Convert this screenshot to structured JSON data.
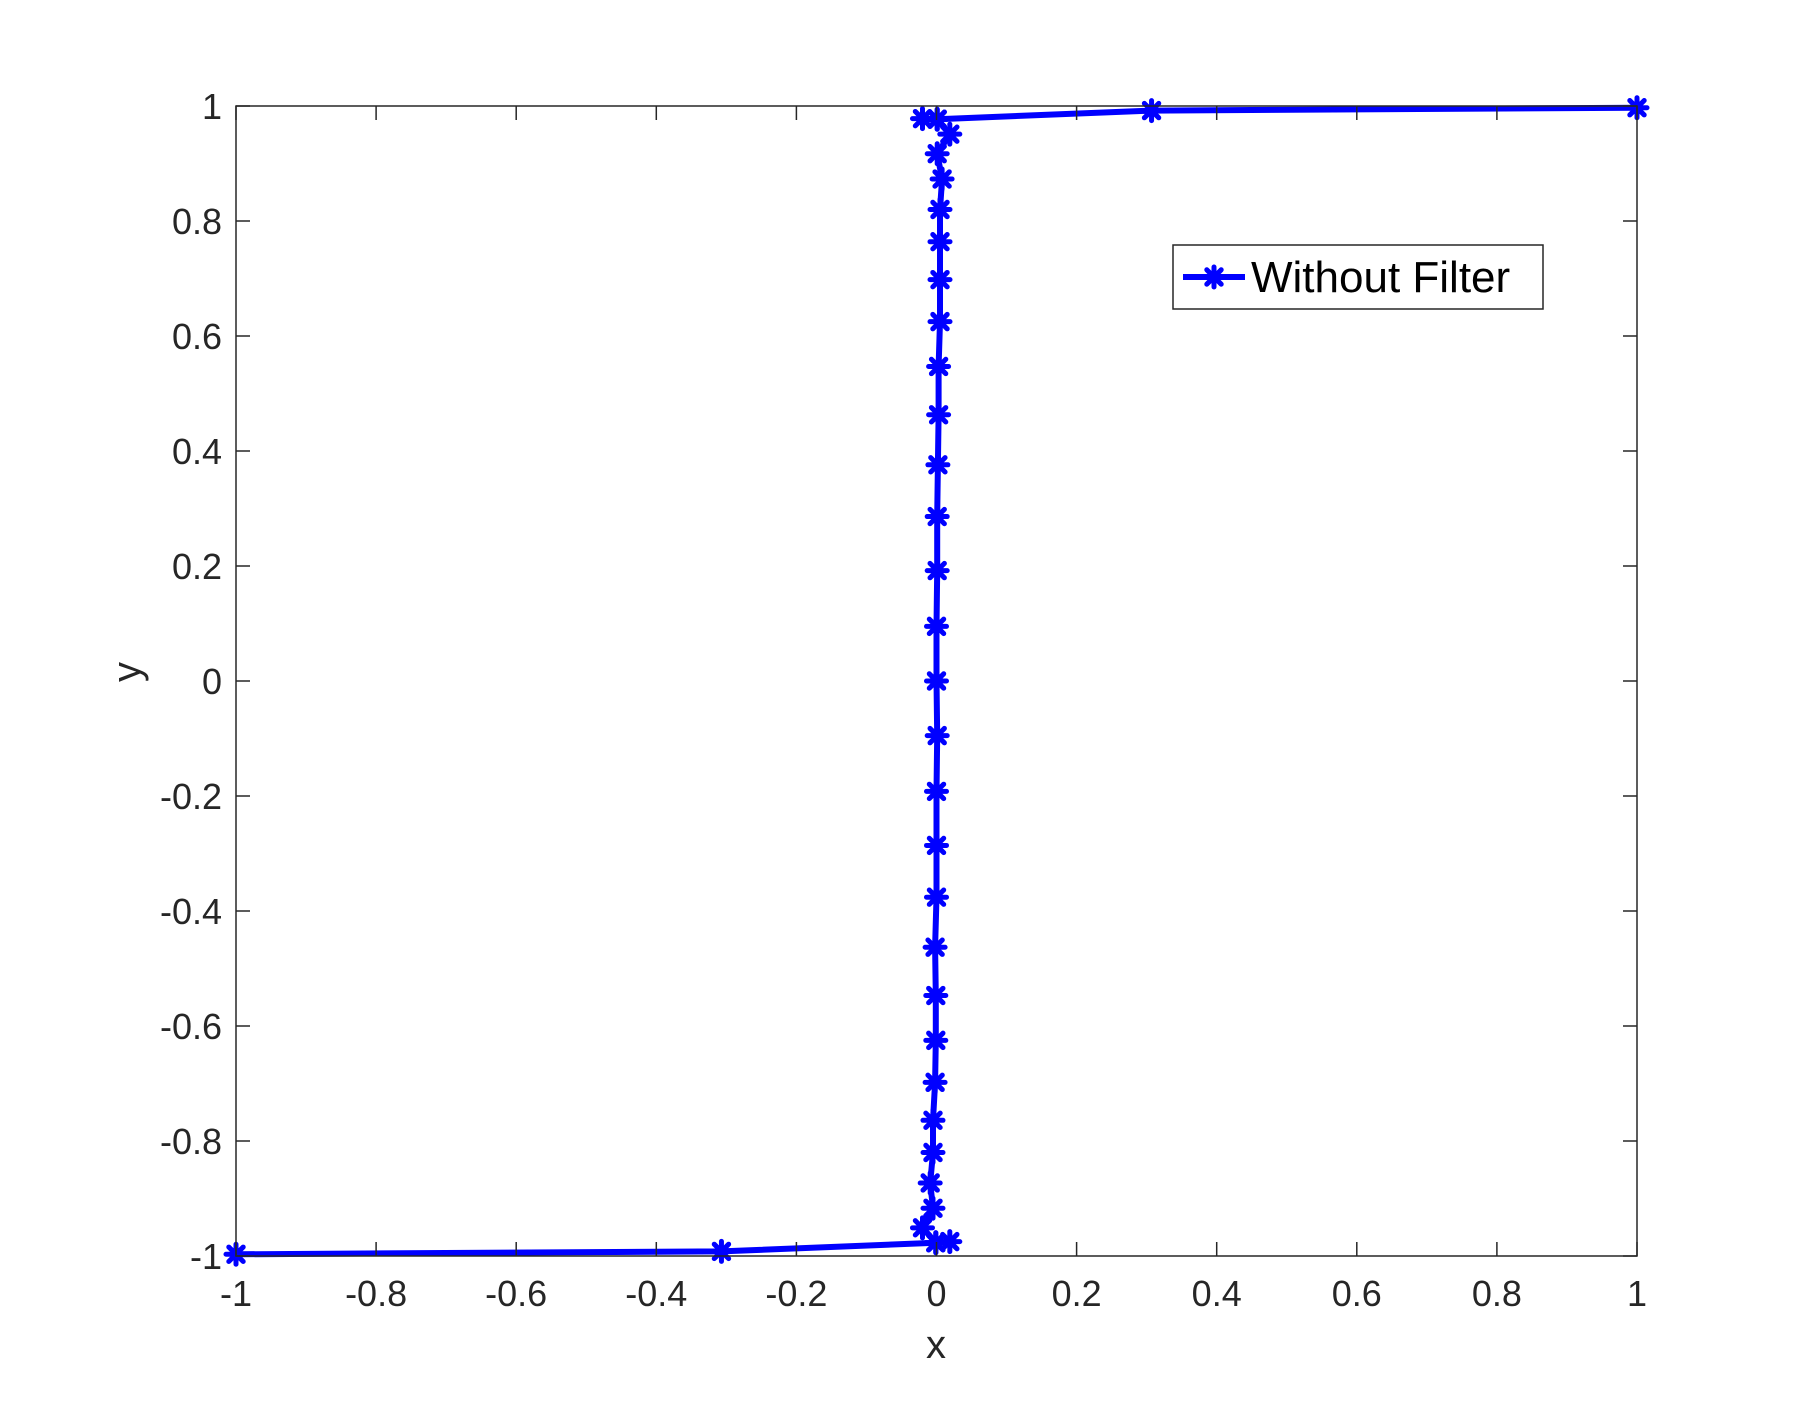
{
  "chart_data": {
    "type": "line",
    "title": "",
    "xlabel": "x",
    "ylabel": "y",
    "xlim": [
      -1,
      1
    ],
    "ylim": [
      -1,
      1
    ],
    "xticks": [
      "-1",
      "-0.8",
      "-0.6",
      "-0.4",
      "-0.2",
      "0",
      "0.2",
      "0.4",
      "0.6",
      "0.8",
      "1"
    ],
    "yticks": [
      "-1",
      "-0.8",
      "-0.6",
      "-0.4",
      "-0.2",
      "0",
      "0.2",
      "0.4",
      "0.6",
      "0.8",
      "1"
    ],
    "grid": false,
    "legend_position": "top-right",
    "marker": "asterisk",
    "color": "#0000ff",
    "series": [
      {
        "name": "Without Filter",
        "points": [
          [
            -1,
            -0.997
          ],
          [
            -0.307,
            -0.992
          ],
          [
            -0.001,
            -0.977
          ],
          [
            -0.02,
            -0.951
          ],
          [
            -0.005,
            -0.917
          ],
          [
            -0.009,
            -0.873
          ],
          [
            -0.005,
            -0.82
          ],
          [
            -0.005,
            -0.764
          ],
          [
            -0.002,
            -0.698
          ],
          [
            -0.001,
            -0.625
          ],
          [
            -0.001,
            -0.547
          ],
          [
            -0.002,
            -0.463
          ],
          [
            0,
            -0.376
          ],
          [
            0,
            -0.286
          ],
          [
            0,
            -0.192
          ],
          [
            0.001,
            -0.095
          ],
          [
            0,
            0
          ],
          [
            0,
            0.095
          ],
          [
            0.001,
            0.192
          ],
          [
            0.001,
            0.286
          ],
          [
            0.002,
            0.376
          ],
          [
            0.003,
            0.463
          ],
          [
            0.003,
            0.547
          ],
          [
            0.005,
            0.625
          ],
          [
            0.005,
            0.698
          ],
          [
            0.005,
            0.764
          ],
          [
            0.005,
            0.82
          ],
          [
            0.008,
            0.873
          ],
          [
            0.001,
            0.917
          ],
          [
            0.019,
            0.951
          ],
          [
            0.001,
            0.977
          ],
          [
            0.307,
            0.992
          ],
          [
            1,
            0.997
          ]
        ]
      },
      {
        "name": "",
        "points": [
          [
            0.001,
            0.977
          ],
          [
            -0.02,
            0.978
          ]
        ]
      },
      {
        "name": "",
        "points": [
          [
            -0.001,
            -0.977
          ],
          [
            0.019,
            -0.975
          ]
        ]
      }
    ]
  }
}
